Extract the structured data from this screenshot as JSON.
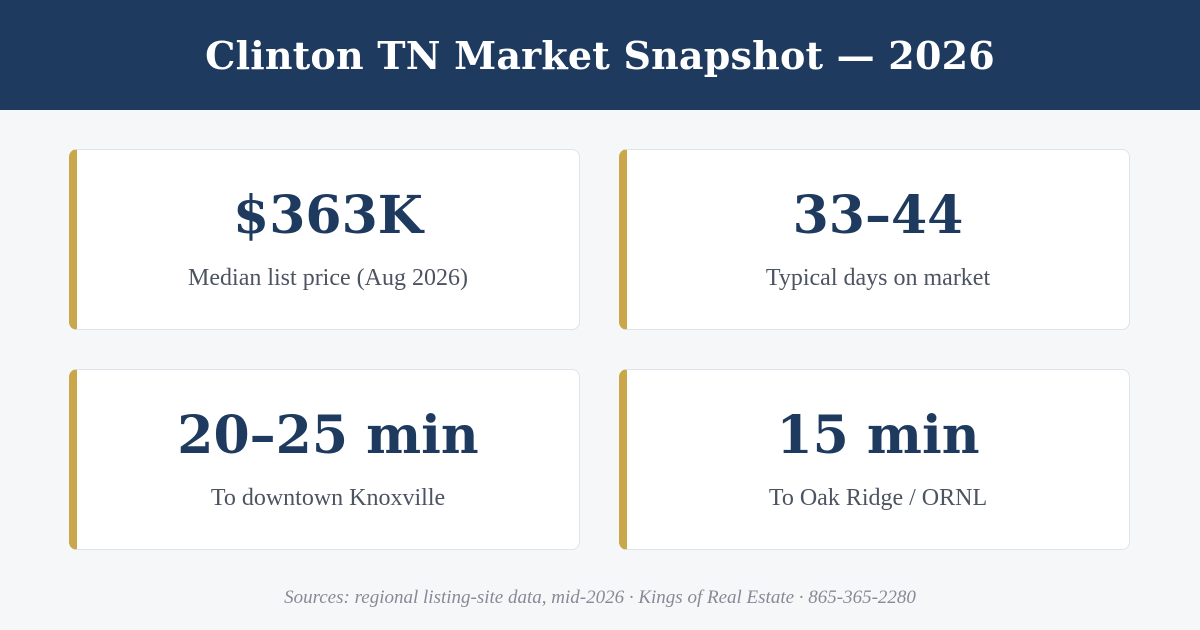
{
  "header": {
    "title": "Clinton TN Market Snapshot — 2026"
  },
  "colors": {
    "header_bg": "#1f3a5f",
    "accent": "#c9a74a",
    "value_text": "#1f3a5f",
    "label_text": "#4c5361",
    "page_bg": "#f6f7f9"
  },
  "stats": [
    {
      "value": "$363K",
      "label": "Median list price (Aug 2026)"
    },
    {
      "value": "33–44",
      "label": "Typical days on market"
    },
    {
      "value": "20–25 min",
      "label": "To downtown Knoxville"
    },
    {
      "value": "15 min",
      "label": "To Oak Ridge / ORNL"
    }
  ],
  "footer": {
    "sources": "Sources: regional listing-site data, mid-2026 · Kings of Real Estate · 865-365-2280"
  }
}
